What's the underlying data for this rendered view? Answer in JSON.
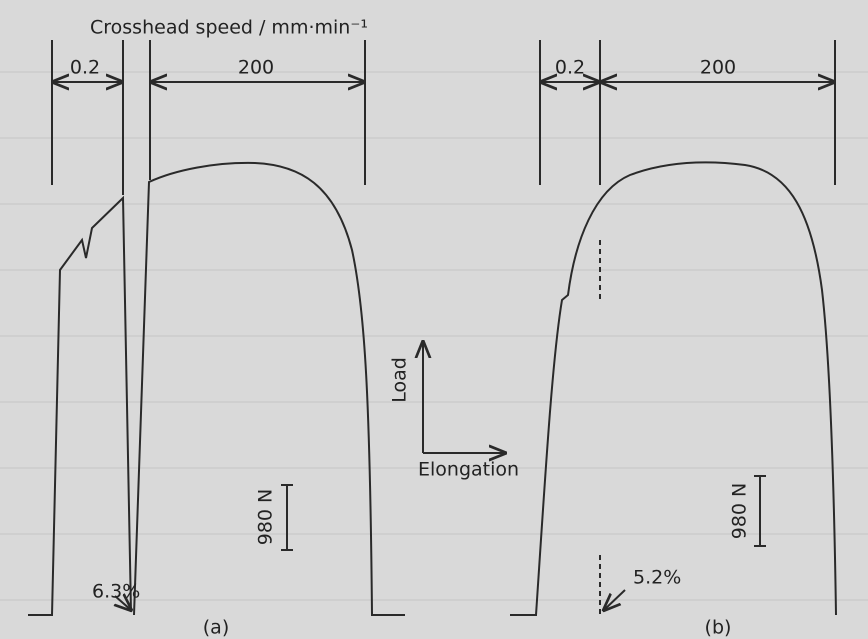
{
  "title": "Crosshead speed / mm·min⁻¹",
  "panels": [
    {
      "label": "(a)",
      "speed_1": "0.2",
      "speed_2": "200",
      "scale": "980 N",
      "strain": "6.3%"
    },
    {
      "label": "(b)",
      "speed_1": "0.2",
      "speed_2": "200",
      "scale": "980 N",
      "strain": "5.2%"
    }
  ],
  "axes": {
    "vertical": "Load",
    "horizontal": "Elongation"
  }
}
